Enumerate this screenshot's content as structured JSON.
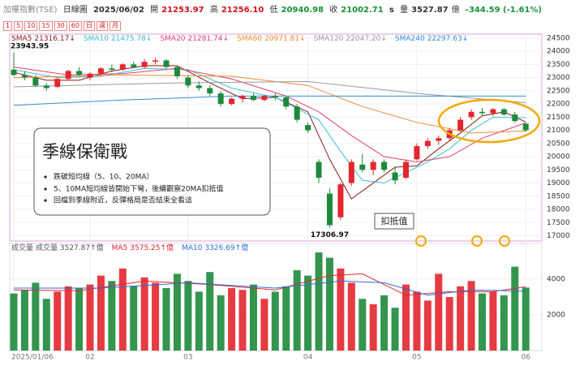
{
  "header": {
    "name": "加權指數(TSE)",
    "chart_kind": "日線圖",
    "date": "2025/06/02",
    "open_label": "開",
    "open": "21253.97",
    "high_label": "高",
    "high": "21256.10",
    "low_label": "低",
    "low": "20940.98",
    "close_label": "收",
    "close": "21002.71",
    "s": "s",
    "volume_label": "量",
    "volume": "3527.87",
    "volume_unit": "億",
    "change": "-344.59 (-1.61%)"
  },
  "buttons": [
    "1",
    "5",
    "10",
    "15",
    "30",
    "60",
    "日",
    "週",
    "月"
  ],
  "note": {
    "title": "季線保衛戰",
    "bullets": [
      "跌破短均線（5、10、20MA）",
      "5、10MA短均線皆開始下彎，後續觀察20MA扣抵值",
      "回檔到季線附近，反彈格局是否結束全看這"
    ]
  },
  "chart_data": [
    {
      "type": "candlestick",
      "categories": [
        "2025/01/06",
        null,
        null,
        null,
        null,
        null,
        null,
        "02",
        null,
        null,
        null,
        null,
        null,
        null,
        null,
        null,
        "03",
        null,
        null,
        null,
        null,
        null,
        null,
        null,
        null,
        null,
        null,
        "04",
        null,
        null,
        null,
        null,
        null,
        null,
        null,
        null,
        null,
        "05",
        null,
        null,
        null,
        null,
        null,
        null,
        null,
        null,
        null,
        "06"
      ],
      "open": [
        23300,
        23100,
        23000,
        22700,
        22650,
        22950,
        23250,
        23000,
        23150,
        23350,
        23300,
        23500,
        23400,
        23600,
        23650,
        23400,
        23000,
        22700,
        22600,
        22400,
        22000,
        22200,
        22300,
        22150,
        22300,
        22250,
        21900,
        21200,
        19800,
        18600,
        17700,
        19000,
        19700,
        19500,
        19800,
        19400,
        19200,
        19900,
        20400,
        20600,
        20700,
        21000,
        21500,
        21700,
        21650,
        21800,
        21600,
        21253.97
      ],
      "high": [
        23943.95,
        23250,
        23100,
        22800,
        23000,
        23300,
        23400,
        23200,
        23400,
        23500,
        23550,
        23600,
        23700,
        23750,
        23700,
        23450,
        23100,
        22850,
        22700,
        22500,
        22250,
        22350,
        22400,
        22350,
        22400,
        22300,
        22000,
        21300,
        19900,
        18800,
        19000,
        19900,
        20100,
        19900,
        19900,
        19600,
        19900,
        20500,
        20700,
        20800,
        21100,
        21500,
        21800,
        21850,
        21850,
        21850,
        21700,
        21256.1
      ],
      "low": [
        23050,
        22900,
        22650,
        22500,
        22600,
        22900,
        23050,
        22900,
        23100,
        23200,
        23250,
        23350,
        23350,
        23500,
        23350,
        22950,
        22600,
        22500,
        22300,
        21900,
        21950,
        22050,
        22100,
        22100,
        22150,
        21800,
        21300,
        20900,
        19000,
        17306.97,
        17600,
        18900,
        19400,
        19300,
        19400,
        18950,
        19150,
        19850,
        20300,
        20450,
        20600,
        20950,
        21400,
        21550,
        21550,
        21550,
        21300,
        20940.98
      ],
      "close": [
        23100,
        23000,
        22700,
        22600,
        22950,
        23250,
        23100,
        23150,
        23350,
        23300,
        23500,
        23400,
        23600,
        23650,
        23400,
        23050,
        22700,
        22600,
        22400,
        22000,
        22200,
        22300,
        22150,
        22300,
        22250,
        21900,
        21400,
        21000,
        19200,
        17400,
        18950,
        19800,
        19500,
        19800,
        19500,
        19100,
        19800,
        20400,
        20600,
        20700,
        21000,
        21400,
        21700,
        21650,
        21800,
        21600,
        21350,
        21002.71
      ],
      "up_color": "#e3262f",
      "down_color": "#1d8a3b",
      "ylim": [
        16800,
        24650
      ],
      "yticks": [
        17000,
        17500,
        18000,
        18500,
        19000,
        19500,
        20000,
        20500,
        21000,
        21500,
        22000,
        22500,
        23000,
        23500,
        24000,
        24500
      ],
      "max_label": 23943.95,
      "min_label": 17306.97,
      "annotation": "扣抵值",
      "series": [
        {
          "name": "SMA5",
          "label": "21316.17↓",
          "color": "#8b1a1a",
          "x": [
            0,
            3,
            6,
            9,
            12,
            15,
            18,
            21,
            24,
            27,
            29,
            31,
            33,
            35,
            37,
            39,
            41,
            43,
            45,
            47
          ],
          "values": [
            23200,
            22900,
            22900,
            23250,
            23450,
            23450,
            22800,
            22200,
            22250,
            21700,
            19900,
            18400,
            19000,
            19600,
            19650,
            20300,
            20900,
            21550,
            21700,
            21316.17
          ]
        },
        {
          "name": "SMA10",
          "label": "21475.78↓",
          "color": "#3fc0d8",
          "x": [
            0,
            4,
            8,
            12,
            16,
            20,
            24,
            28,
            30,
            32,
            34,
            36,
            38,
            40,
            42,
            44,
            47
          ],
          "values": [
            23300,
            23000,
            23050,
            23350,
            23300,
            22600,
            22250,
            21400,
            20200,
            19100,
            19000,
            19400,
            19800,
            20300,
            21000,
            21500,
            21475.78
          ]
        },
        {
          "name": "SMA20",
          "label": "21281.74↓",
          "color": "#e04070",
          "x": [
            0,
            5,
            10,
            15,
            20,
            25,
            28,
            31,
            34,
            37,
            40,
            43,
            47
          ],
          "values": [
            23400,
            23100,
            23150,
            23350,
            22950,
            22300,
            21700,
            20800,
            20000,
            19800,
            20000,
            20700,
            21281.74
          ]
        },
        {
          "name": "SMA60",
          "label": "20971.81↓",
          "color": "#f08a30",
          "x": [
            0,
            10,
            20,
            27,
            32,
            37,
            42,
            47
          ],
          "values": [
            23000,
            23100,
            23050,
            22700,
            21900,
            21300,
            20900,
            20971.81
          ]
        },
        {
          "name": "SMA120",
          "label": "22047.20↓",
          "color": "#999999",
          "x": [
            0,
            15,
            27,
            37,
            47
          ],
          "values": [
            22650,
            22800,
            22850,
            22400,
            22047.2
          ]
        },
        {
          "name": "SMA240",
          "label": "22297.63↓",
          "color": "#2f8fd6",
          "x": [
            0,
            10,
            20,
            30,
            40,
            47
          ],
          "values": [
            21950,
            22150,
            22300,
            22300,
            22300,
            22297.63
          ]
        }
      ]
    },
    {
      "type": "bar",
      "values": [
        3200,
        3400,
        3800,
        2900,
        3300,
        3600,
        3500,
        3700,
        4200,
        3900,
        4600,
        3600,
        4100,
        3800,
        3500,
        4300,
        3900,
        3300,
        4400,
        3100,
        3500,
        3400,
        3700,
        2900,
        3300,
        3600,
        4500,
        4200,
        5500,
        5200,
        4600,
        3800,
        2900,
        2600,
        3100,
        2400,
        3700,
        3300,
        2800,
        4300,
        3000,
        3600,
        3900,
        3200,
        3300,
        3100,
        4700,
        3527.87
      ],
      "ylim": [
        0,
        6000
      ],
      "yticks": [
        2000,
        4000
      ],
      "series": [
        {
          "name": "成交量",
          "label": "成交量 3527.87↑億",
          "color": "#555555"
        },
        {
          "name": "MA5",
          "label": "3575.25↑億",
          "color": "#e3262f",
          "x": [
            0,
            6,
            12,
            18,
            24,
            29,
            32,
            36,
            40,
            44,
            47
          ],
          "values": [
            3400,
            3350,
            3900,
            3700,
            3400,
            4200,
            4300,
            3100,
            3300,
            3300,
            3575.25
          ]
        },
        {
          "name": "MA10",
          "label": "3326.69↑億",
          "color": "#2f6fd6",
          "x": [
            0,
            8,
            16,
            24,
            30,
            34,
            38,
            42,
            47
          ],
          "values": [
            3500,
            3500,
            3800,
            3500,
            3900,
            3800,
            3100,
            3400,
            3326.69
          ]
        }
      ]
    }
  ]
}
